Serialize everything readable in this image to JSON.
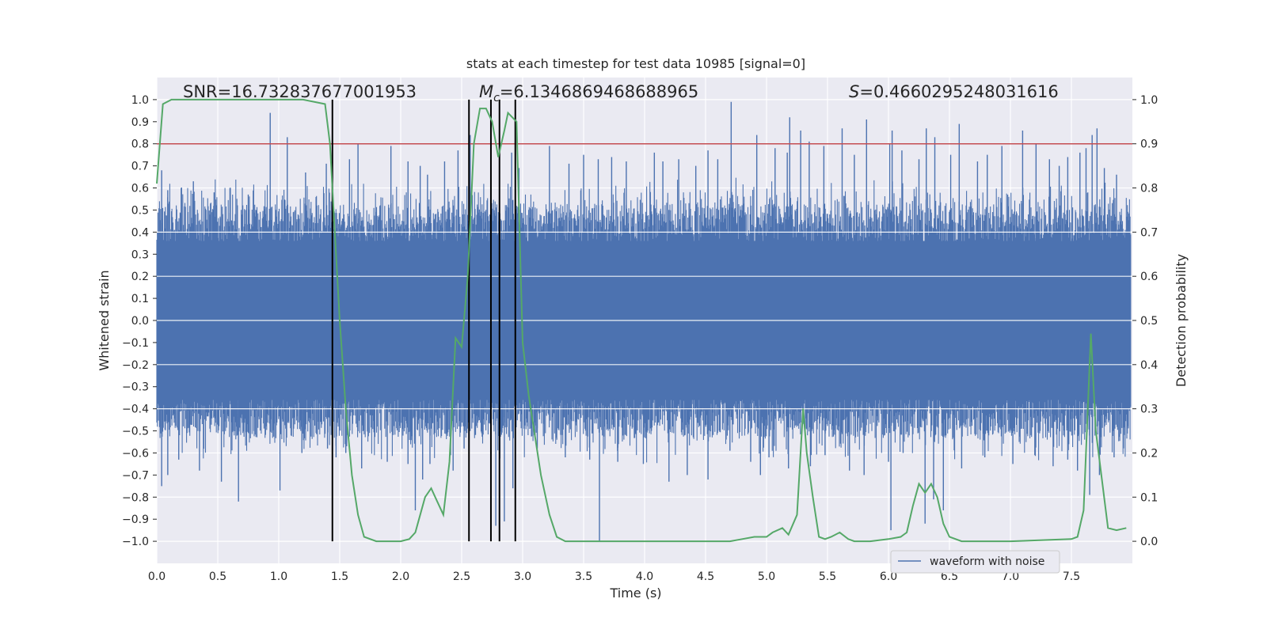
{
  "chart_data": {
    "type": "line",
    "title": "stats at each timestep for test data 10985 [signal=0]",
    "xlabel": "Time (s)",
    "ylabel": "Whitened strain",
    "y2label": "Detection probability",
    "xlim": [
      0.0,
      8.0
    ],
    "ylim": [
      -1.1,
      1.1
    ],
    "y2lim": [
      -0.05,
      1.05
    ],
    "xticks": [
      "0.0",
      "0.5",
      "1.0",
      "1.5",
      "2.0",
      "2.5",
      "3.0",
      "3.5",
      "4.0",
      "4.5",
      "5.0",
      "5.5",
      "6.0",
      "6.5",
      "7.0",
      "7.5"
    ],
    "yticks": [
      "1.0",
      "0.9",
      "0.8",
      "0.7",
      "0.6",
      "0.5",
      "0.4",
      "0.3",
      "0.2",
      "0.1",
      "0.0",
      "−0.1",
      "−0.2",
      "−0.3",
      "−0.4",
      "−0.5",
      "−0.6",
      "−0.7",
      "−0.8",
      "−0.9",
      "−1.0"
    ],
    "y2ticks": [
      "1.0",
      "0.9",
      "0.8",
      "0.7",
      "0.6",
      "0.5",
      "0.4",
      "0.3",
      "0.2",
      "0.1",
      "0.0"
    ],
    "grid": true,
    "legend": {
      "placement": "lower-right",
      "entries": [
        "waveform with noise"
      ]
    },
    "annotations": {
      "snr": "SNR=16.732837677001953",
      "mc_prefix": "M",
      "mc_sub": "c",
      "mc_value": "=6.1346869468688965",
      "s_prefix": "S",
      "s_value": "=0.4660295248031616"
    },
    "threshold_y2": 0.9,
    "vlines_x": [
      1.44,
      2.56,
      2.74,
      2.81,
      2.94
    ],
    "strain_spikes_pos": [
      [
        0.04,
        0.68
      ],
      [
        0.09,
        0.59
      ],
      [
        0.2,
        0.6
      ],
      [
        0.3,
        0.63
      ],
      [
        0.47,
        0.58
      ],
      [
        0.6,
        0.6
      ],
      [
        0.75,
        0.57
      ],
      [
        0.93,
        0.94
      ],
      [
        1.07,
        0.83
      ],
      [
        1.22,
        0.67
      ],
      [
        1.39,
        0.71
      ],
      [
        1.44,
        0.75
      ],
      [
        1.58,
        0.73
      ],
      [
        1.65,
        0.8
      ],
      [
        1.92,
        0.79
      ],
      [
        2.06,
        0.72
      ],
      [
        2.16,
        0.7
      ],
      [
        2.22,
        0.66
      ],
      [
        2.36,
        0.72
      ],
      [
        2.47,
        0.77
      ],
      [
        2.57,
        0.84
      ],
      [
        2.74,
        0.81
      ],
      [
        2.91,
        0.76
      ],
      [
        2.97,
        0.69
      ],
      [
        3.22,
        0.79
      ],
      [
        3.38,
        0.71
      ],
      [
        3.5,
        0.75
      ],
      [
        3.62,
        0.73
      ],
      [
        3.73,
        0.74
      ],
      [
        3.85,
        0.72
      ],
      [
        4.08,
        0.76
      ],
      [
        4.15,
        0.72
      ],
      [
        4.28,
        0.73
      ],
      [
        4.42,
        0.7
      ],
      [
        4.52,
        0.77
      ],
      [
        4.6,
        0.73
      ],
      [
        4.71,
        0.99
      ],
      [
        4.92,
        0.84
      ],
      [
        5.07,
        0.78
      ],
      [
        5.17,
        0.76
      ],
      [
        5.19,
        0.92
      ],
      [
        5.28,
        0.86
      ],
      [
        5.35,
        0.81
      ],
      [
        5.47,
        0.79
      ],
      [
        5.62,
        0.87
      ],
      [
        5.72,
        0.75
      ],
      [
        5.82,
        0.91
      ],
      [
        6.01,
        0.8
      ],
      [
        6.03,
        0.86
      ],
      [
        6.11,
        0.77
      ],
      [
        6.25,
        0.73
      ],
      [
        6.31,
        0.87
      ],
      [
        6.38,
        0.83
      ],
      [
        6.51,
        0.75
      ],
      [
        6.58,
        0.89
      ],
      [
        6.73,
        0.72
      ],
      [
        6.81,
        0.75
      ],
      [
        6.93,
        0.79
      ],
      [
        7.1,
        0.86
      ],
      [
        7.21,
        0.8
      ],
      [
        7.32,
        0.73
      ],
      [
        7.4,
        0.7
      ],
      [
        7.47,
        0.74
      ],
      [
        7.57,
        0.76
      ],
      [
        7.62,
        0.78
      ],
      [
        7.67,
        0.84
      ],
      [
        7.71,
        0.87
      ],
      [
        7.77,
        0.69
      ],
      [
        7.87,
        0.66
      ]
    ],
    "strain_spikes_neg": [
      [
        0.04,
        -0.75
      ],
      [
        0.09,
        -0.7
      ],
      [
        0.18,
        -0.63
      ],
      [
        0.35,
        -0.68
      ],
      [
        0.53,
        -0.73
      ],
      [
        0.67,
        -0.82
      ],
      [
        1.01,
        -0.77
      ],
      [
        1.19,
        -0.6
      ],
      [
        1.4,
        -0.58
      ],
      [
        1.47,
        -0.62
      ],
      [
        1.55,
        -0.6
      ],
      [
        1.68,
        -0.67
      ],
      [
        1.89,
        -0.64
      ],
      [
        2.06,
        -0.65
      ],
      [
        2.12,
        -0.86
      ],
      [
        2.18,
        -0.72
      ],
      [
        2.24,
        -0.65
      ],
      [
        2.43,
        -0.68
      ],
      [
        2.52,
        -0.58
      ],
      [
        2.74,
        -0.98
      ],
      [
        2.78,
        -0.93
      ],
      [
        2.85,
        -0.91
      ],
      [
        2.92,
        -0.76
      ],
      [
        3.12,
        -0.58
      ],
      [
        3.35,
        -0.62
      ],
      [
        3.55,
        -0.63
      ],
      [
        3.63,
        -1.0
      ],
      [
        3.78,
        -0.64
      ],
      [
        3.99,
        -0.65
      ],
      [
        4.2,
        -0.73
      ],
      [
        4.35,
        -0.7
      ],
      [
        4.52,
        -0.72
      ],
      [
        4.7,
        -0.59
      ],
      [
        4.87,
        -0.64
      ],
      [
        4.95,
        -0.7
      ],
      [
        5.02,
        -0.62
      ],
      [
        5.18,
        -0.67
      ],
      [
        5.36,
        -0.66
      ],
      [
        5.48,
        -0.61
      ],
      [
        5.68,
        -0.68
      ],
      [
        5.8,
        -0.7
      ],
      [
        6.0,
        -0.64
      ],
      [
        6.02,
        -0.95
      ],
      [
        6.12,
        -0.6
      ],
      [
        6.3,
        -0.92
      ],
      [
        6.37,
        -0.81
      ],
      [
        6.45,
        -0.86
      ],
      [
        6.6,
        -0.67
      ],
      [
        6.79,
        -0.62
      ],
      [
        7.02,
        -0.65
      ],
      [
        7.2,
        -0.61
      ],
      [
        7.35,
        -0.66
      ],
      [
        7.47,
        -0.63
      ],
      [
        7.55,
        -0.68
      ],
      [
        7.65,
        -0.79
      ],
      [
        7.73,
        -0.7
      ],
      [
        7.85,
        -0.62
      ]
    ],
    "probability": {
      "x": [
        0.0,
        0.05,
        0.12,
        0.3,
        0.6,
        0.9,
        1.2,
        1.38,
        1.42,
        1.46,
        1.5,
        1.55,
        1.6,
        1.65,
        1.7,
        1.8,
        2.0,
        2.07,
        2.12,
        2.15,
        2.2,
        2.25,
        2.3,
        2.35,
        2.4,
        2.45,
        2.5,
        2.55,
        2.6,
        2.65,
        2.7,
        2.75,
        2.8,
        2.85,
        2.88,
        2.95,
        3.0,
        3.05,
        3.15,
        3.22,
        3.28,
        3.35,
        3.6,
        4.0,
        4.5,
        4.7,
        4.8,
        4.9,
        5.0,
        5.05,
        5.13,
        5.18,
        5.25,
        5.3,
        5.33,
        5.38,
        5.43,
        5.48,
        5.53,
        5.6,
        5.67,
        5.72,
        5.78,
        5.85,
        6.0,
        6.1,
        6.15,
        6.2,
        6.25,
        6.3,
        6.35,
        6.4,
        6.45,
        6.5,
        6.6,
        7.0,
        7.5,
        7.55,
        7.6,
        7.66,
        7.7,
        7.75,
        7.8,
        7.87,
        7.95
      ],
      "y": [
        0.81,
        0.99,
        1.0,
        1.0,
        1.0,
        1.0,
        1.0,
        0.99,
        0.9,
        0.7,
        0.5,
        0.3,
        0.15,
        0.06,
        0.01,
        0.0,
        0.0,
        0.005,
        0.02,
        0.05,
        0.1,
        0.12,
        0.09,
        0.06,
        0.18,
        0.46,
        0.44,
        0.6,
        0.9,
        0.98,
        0.98,
        0.95,
        0.87,
        0.93,
        0.97,
        0.95,
        0.45,
        0.33,
        0.15,
        0.06,
        0.01,
        0.0,
        0.0,
        0.0,
        0.0,
        0.0,
        0.005,
        0.01,
        0.01,
        0.02,
        0.03,
        0.015,
        0.06,
        0.3,
        0.2,
        0.1,
        0.01,
        0.005,
        0.01,
        0.02,
        0.005,
        0.0,
        0.0,
        0.0,
        0.005,
        0.01,
        0.02,
        0.08,
        0.13,
        0.11,
        0.13,
        0.1,
        0.04,
        0.01,
        0.0,
        0.0,
        0.005,
        0.01,
        0.07,
        0.47,
        0.25,
        0.14,
        0.03,
        0.025,
        0.03
      ]
    },
    "colors": {
      "background": "#EAEAF2",
      "strain": "#4C72B0",
      "probability": "#55A868",
      "threshold": "#C44E52",
      "vline": "#000000"
    }
  }
}
